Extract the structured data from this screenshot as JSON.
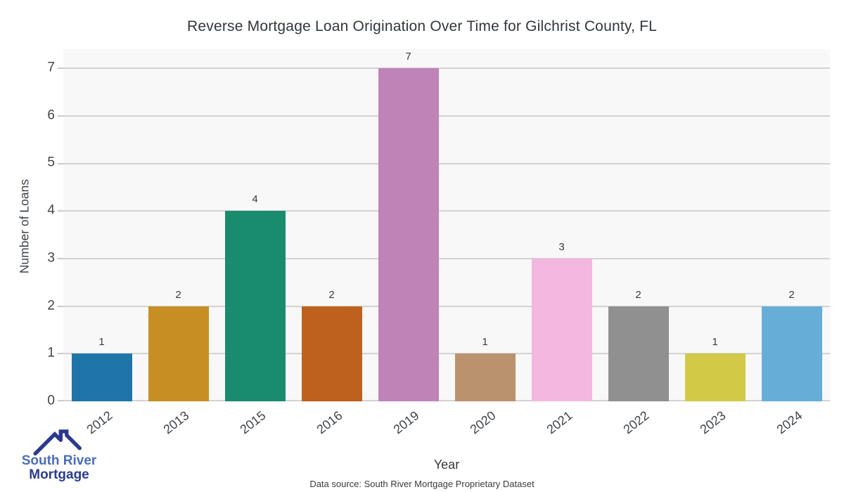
{
  "title": "Reverse Mortgage Loan Origination Over Time for Gilchrist County, FL",
  "chart_data": {
    "type": "bar",
    "categories": [
      "2012",
      "2013",
      "2015",
      "2016",
      "2019",
      "2020",
      "2021",
      "2022",
      "2023",
      "2024"
    ],
    "values": [
      1,
      2,
      4,
      2,
      7,
      1,
      3,
      2,
      1,
      2
    ],
    "bar_colors": [
      "#1f74a8",
      "#c78f23",
      "#198c6e",
      "#bd611d",
      "#c083b8",
      "#bb926e",
      "#f3b7e0",
      "#909090",
      "#d2ca47",
      "#66aed8"
    ],
    "title": "Reverse Mortgage Loan Origination Over Time for Gilchrist County, FL",
    "xlabel": "Year",
    "ylabel": "Number of Loans",
    "ylim": [
      0,
      7.4
    ],
    "yticks": [
      0,
      1,
      2,
      3,
      4,
      5,
      6,
      7
    ],
    "grid": true,
    "legend": "none",
    "plot_bg": "#f8f8f8",
    "grid_color": "#d2d2d2"
  },
  "footer": {
    "data_source": "Data source: South River Mortgage Proprietary Dataset"
  },
  "logo": {
    "line1": "South River",
    "line2": "Mortgage",
    "color_primary": "#4a6db8",
    "color_secondary": "#2b3a8f"
  }
}
